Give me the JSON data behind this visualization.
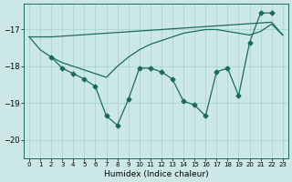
{
  "xlabel": "Humidex (Indice chaleur)",
  "bg_color": "#cce8e6",
  "grid_color": "#aad4d2",
  "line_color": "#1a6b5e",
  "x_values": [
    0,
    1,
    2,
    3,
    4,
    5,
    6,
    7,
    8,
    9,
    10,
    11,
    12,
    13,
    14,
    15,
    16,
    17,
    18,
    19,
    20,
    21,
    22,
    23
  ],
  "series_main": [
    null,
    null,
    -17.75,
    -18.05,
    -18.2,
    -18.35,
    -18.55,
    -19.35,
    -19.6,
    -18.9,
    -18.05,
    -18.05,
    -18.15,
    -18.35,
    -18.95,
    -19.05,
    -19.35,
    -18.15,
    -18.05,
    -18.8,
    -17.35,
    -16.55,
    -16.55,
    null
  ],
  "series_smooth": [
    -17.2,
    -17.55,
    -17.75,
    -17.9,
    -18.0,
    -18.1,
    -18.2,
    -18.3,
    -18.0,
    -17.75,
    -17.55,
    -17.4,
    -17.3,
    -17.2,
    -17.1,
    -17.05,
    -17.0,
    -17.0,
    -17.05,
    -17.1,
    -17.15,
    -17.05,
    -16.85,
    -17.15
  ],
  "series_top": [
    -17.2,
    -17.2,
    -17.2,
    -17.18,
    -17.16,
    -17.14,
    -17.12,
    -17.1,
    -17.08,
    -17.06,
    -17.04,
    -17.02,
    -17.0,
    -16.98,
    -16.96,
    -16.94,
    -16.92,
    -16.9,
    -16.88,
    -16.86,
    -16.84,
    -16.82,
    -16.8,
    -17.15
  ],
  "ylim": [
    -20.5,
    -16.3
  ],
  "yticks": [
    -20,
    -19,
    -18,
    -17
  ],
  "xlim": [
    -0.5,
    23.5
  ]
}
